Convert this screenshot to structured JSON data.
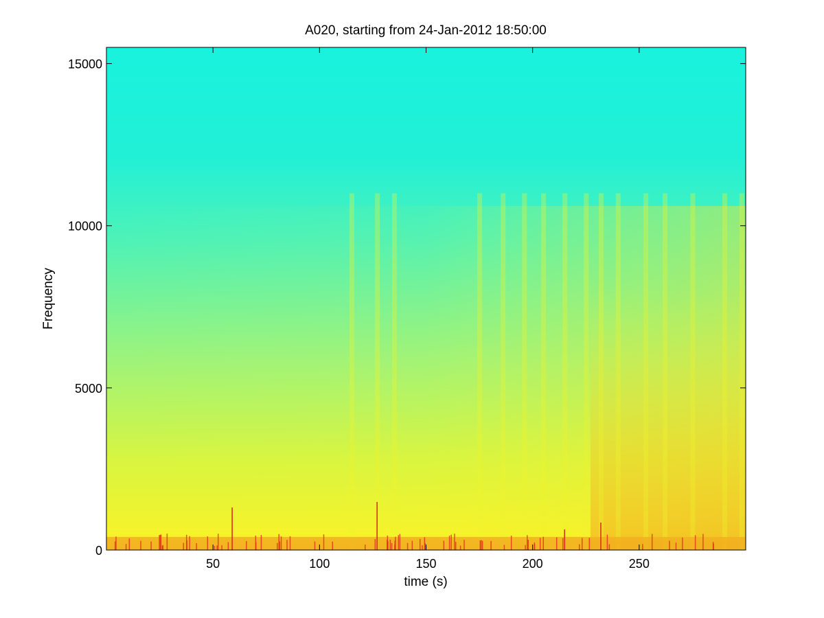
{
  "chart_data": {
    "type": "heatmap",
    "title": "A020, starting from 24-Jan-2012 18:50:00",
    "xlabel": "time (s)",
    "ylabel": "Frequency",
    "xlim": [
      0,
      300
    ],
    "ylim": [
      0,
      15500
    ],
    "x_ticks": [
      50,
      100,
      150,
      200,
      250
    ],
    "x_tick_labels": [
      "50",
      "100",
      "150",
      "200",
      "250"
    ],
    "y_ticks": [
      0,
      5000,
      10000,
      15000
    ],
    "y_tick_labels": [
      "0",
      "5000",
      "10000",
      "15000"
    ],
    "grid": false,
    "colormap": "jet",
    "colors": {
      "background_high_freq": "#19F2DE",
      "mid_band": "#A8F56E",
      "low_band": "#F6F32A",
      "energy_hotspots": "#F04A1A"
    },
    "features": {
      "high_energy_band_hz": [
        0,
        400
      ],
      "mid_energy_band_upper_hz_start": 5000,
      "mid_energy_band_upper_hz_end": 11000,
      "vertical_transients_s": [
        115,
        127,
        135,
        175,
        186,
        196,
        205,
        215,
        225,
        232,
        240,
        253,
        262,
        275,
        290,
        298
      ]
    }
  }
}
